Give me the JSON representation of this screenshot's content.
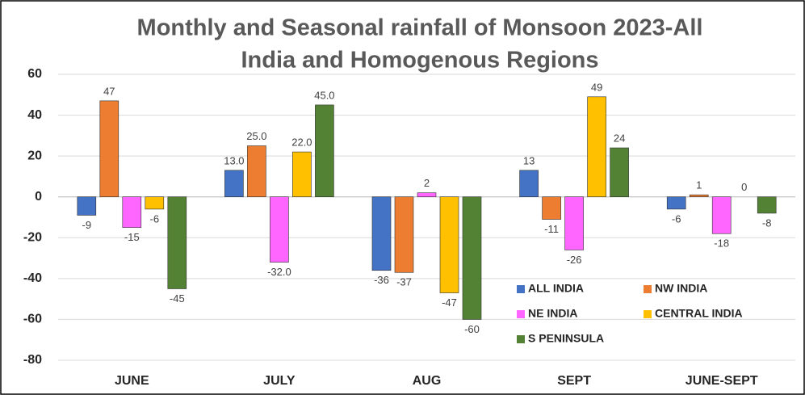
{
  "chart_data": {
    "type": "bar",
    "title": [
      "Monthly and Seasonal rainfall of Monsoon 2023-All",
      "India and  Homogenous Regions"
    ],
    "categories": [
      "JUNE",
      "JULY",
      "AUG",
      "SEPT",
      "JUNE-SEPT"
    ],
    "series": [
      {
        "name": "ALL INDIA",
        "color": "#4472c4",
        "values": [
          -9,
          13,
          -36,
          13,
          -6
        ],
        "value_labels": [
          "-9",
          "13.0",
          "-36",
          "13",
          "-6"
        ]
      },
      {
        "name": "NW INDIA",
        "color": "#ed7d31",
        "values": [
          47,
          25,
          -37,
          -11,
          1
        ],
        "value_labels": [
          "47",
          "25.0",
          "-37",
          "-11",
          "1"
        ]
      },
      {
        "name": "NE INDIA",
        "color": "#ff66ff",
        "values": [
          -15,
          -32,
          2,
          -26,
          -18
        ],
        "value_labels": [
          "-15",
          "-32.0",
          "2",
          "-26",
          "-18"
        ]
      },
      {
        "name": "CENTRAL INDIA",
        "color": "#ffc000",
        "values": [
          -6,
          22,
          -47,
          49,
          0
        ],
        "value_labels": [
          "-6",
          "22.0",
          "-47",
          "49",
          "0"
        ]
      },
      {
        "name": "S  PENINSULA",
        "color": "#548235",
        "values": [
          -45,
          45,
          -60,
          24,
          -8
        ],
        "value_labels": [
          "-45",
          "45.0",
          "-60",
          "24",
          "-8"
        ]
      }
    ],
    "ylim": [
      -80,
      60
    ],
    "yticks": [
      -80,
      -60,
      -40,
      -20,
      0,
      20,
      40,
      60
    ],
    "grid": true,
    "legend": "lower right"
  }
}
